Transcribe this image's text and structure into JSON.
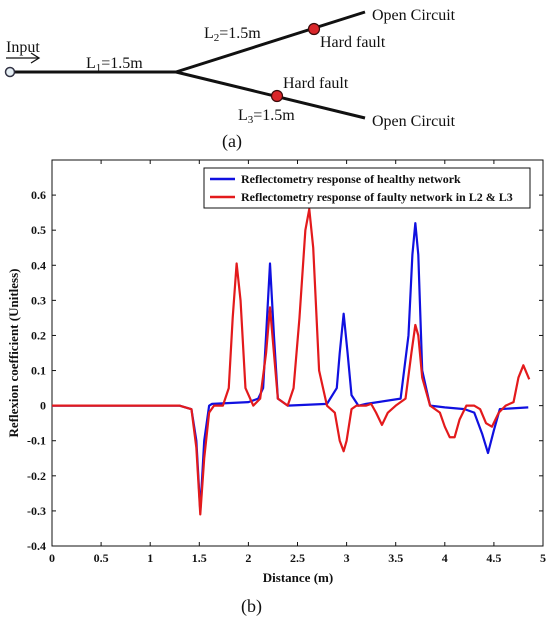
{
  "diagram": {
    "input_label": "Input",
    "l1": {
      "main": "L",
      "sub": "1",
      "value": "=1.5m"
    },
    "l2": {
      "main": "L",
      "sub": "2",
      "value": "=1.5m"
    },
    "l3": {
      "main": "L",
      "sub": "3",
      "value": "=1.5m"
    },
    "open_circuit_top": "Open Circuit",
    "open_circuit_bottom": "Open Circuit",
    "hard_fault_top": "Hard fault",
    "hard_fault_bottom": "Hard fault",
    "caption": "(a)",
    "fault_color": "#d9262a"
  },
  "chart_caption": "(b)",
  "chart_data": {
    "type": "line",
    "xlabel": "Distance (m)",
    "ylabel": "Reflexion coefficient (Unitless)",
    "xlim": [
      0,
      5
    ],
    "ylim": [
      -0.4,
      0.7
    ],
    "xticks": [
      "0",
      "0.5",
      "1",
      "1.5",
      "2",
      "2.5",
      "3",
      "3.5",
      "4",
      "4.5",
      "5"
    ],
    "yticks": [
      "-0.4",
      "-0.3",
      "-0.2",
      "-0.1",
      "0",
      "0.1",
      "0.2",
      "0.3",
      "0.4",
      "0.5",
      "0.6"
    ],
    "grid": false,
    "legend_position": "top-right",
    "series": [
      {
        "name": "Reflectometry response of healthy network",
        "color": "#1010e0",
        "x": [
          0,
          0.3,
          0.8,
          1.3,
          1.42,
          1.47,
          1.51,
          1.55,
          1.6,
          1.63,
          2.0,
          2.1,
          2.15,
          2.18,
          2.22,
          2.26,
          2.3,
          2.4,
          2.8,
          2.9,
          2.93,
          2.97,
          3.01,
          3.05,
          3.12,
          3.2,
          3.55,
          3.63,
          3.67,
          3.7,
          3.73,
          3.77,
          3.85,
          4.0,
          4.2,
          4.3,
          4.38,
          4.44,
          4.5,
          4.56,
          4.85
        ],
        "y": [
          0,
          0,
          0,
          0,
          -0.01,
          -0.1,
          -0.3,
          -0.1,
          0,
          0.005,
          0.01,
          0.02,
          0.05,
          0.2,
          0.405,
          0.2,
          0.02,
          0,
          0.005,
          0.05,
          0.15,
          0.262,
          0.15,
          0.03,
          0,
          0.005,
          0.02,
          0.2,
          0.43,
          0.52,
          0.43,
          0.1,
          0,
          -0.005,
          -0.01,
          -0.02,
          -0.08,
          -0.135,
          -0.07,
          -0.01,
          -0.005
        ]
      },
      {
        "name": "Reflectometry response of faulty network in L2 & L3",
        "color": "#e31a1c",
        "x": [
          0,
          0.5,
          1.0,
          1.3,
          1.42,
          1.47,
          1.51,
          1.55,
          1.6,
          1.65,
          1.74,
          1.8,
          1.84,
          1.88,
          1.92,
          1.97,
          2.05,
          2.12,
          2.18,
          2.22,
          2.26,
          2.3,
          2.4,
          2.46,
          2.52,
          2.58,
          2.62,
          2.66,
          2.72,
          2.8,
          2.88,
          2.93,
          2.97,
          3.0,
          3.05,
          3.1,
          3.2,
          3.25,
          3.3,
          3.36,
          3.42,
          3.5,
          3.6,
          3.66,
          3.7,
          3.73,
          3.77,
          3.85,
          3.95,
          4.0,
          4.05,
          4.1,
          4.15,
          4.22,
          4.3,
          4.36,
          4.42,
          4.48,
          4.55,
          4.62,
          4.7,
          4.75,
          4.8,
          4.86
        ],
        "y": [
          0,
          0,
          0,
          0,
          -0.01,
          -0.12,
          -0.31,
          -0.15,
          -0.02,
          0,
          0,
          0.05,
          0.25,
          0.405,
          0.3,
          0.05,
          0,
          0.02,
          0.15,
          0.28,
          0.15,
          0.02,
          0,
          0.05,
          0.25,
          0.5,
          0.56,
          0.45,
          0.1,
          0,
          -0.02,
          -0.1,
          -0.13,
          -0.1,
          -0.01,
          0,
          0,
          0.005,
          -0.02,
          -0.055,
          -0.02,
          0,
          0.02,
          0.15,
          0.23,
          0.2,
          0.08,
          0,
          -0.02,
          -0.06,
          -0.09,
          -0.09,
          -0.04,
          0,
          0,
          -0.01,
          -0.05,
          -0.06,
          -0.02,
          0,
          0.01,
          0.08,
          0.115,
          0.075
        ]
      }
    ]
  }
}
